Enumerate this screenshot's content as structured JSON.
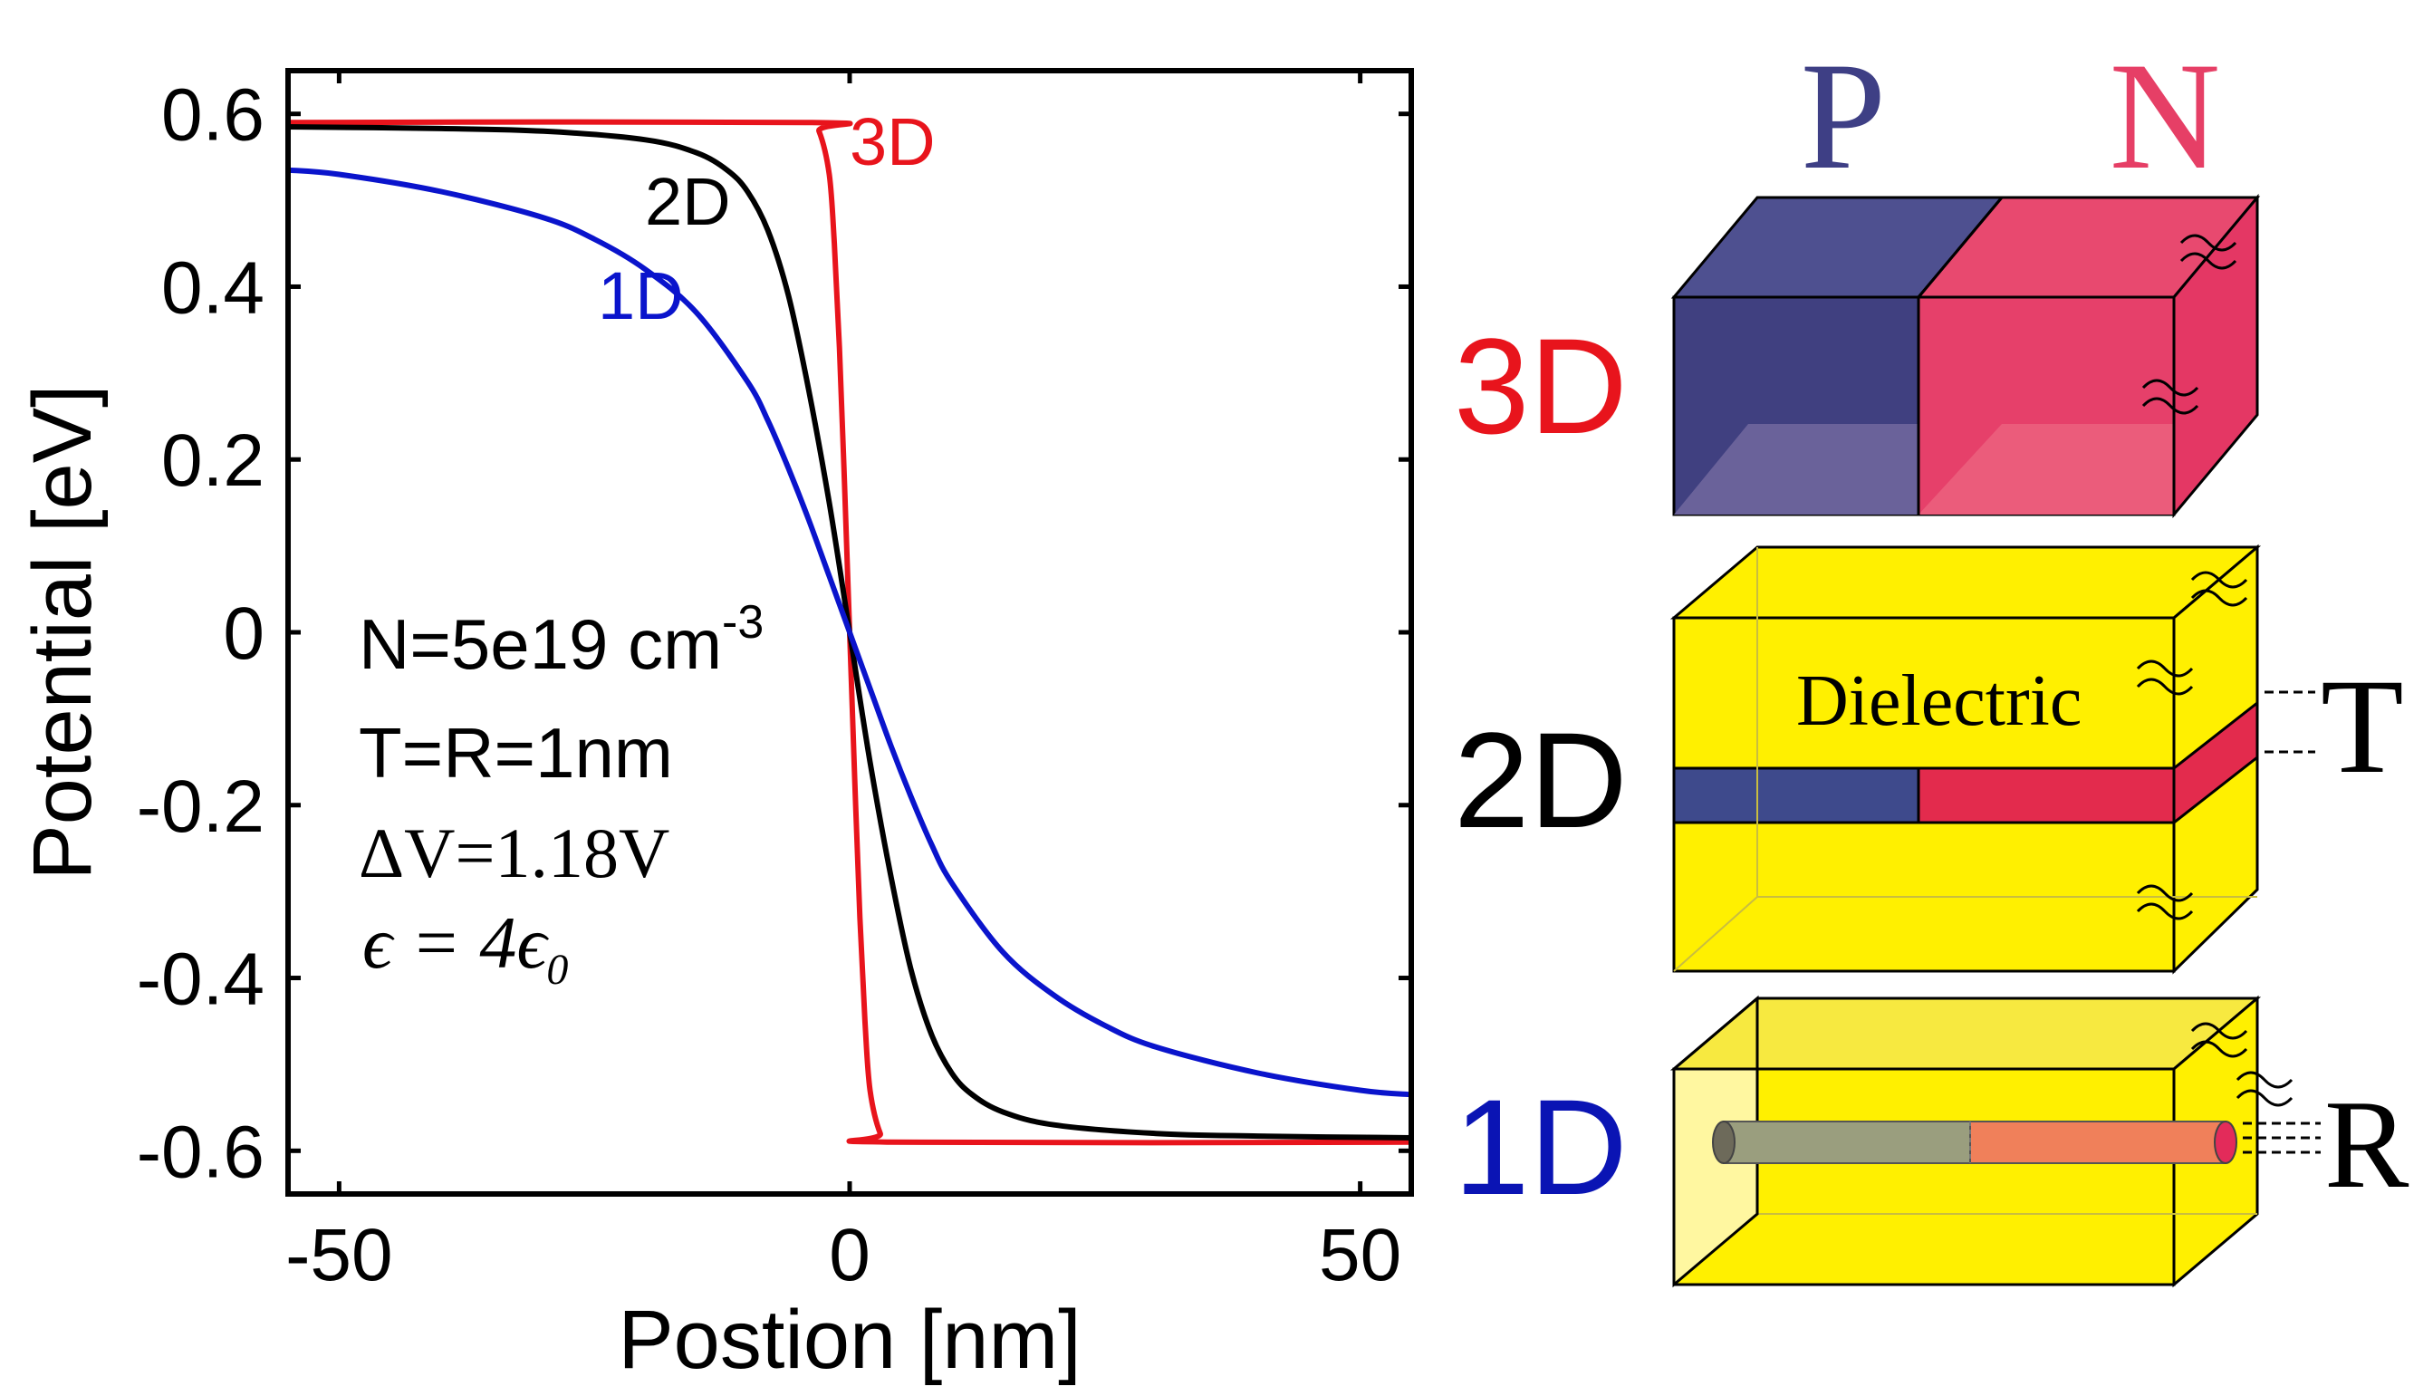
{
  "chart_data": {
    "type": "line",
    "xlabel": "Postion [nm]",
    "ylabel": "Potential [eV]",
    "xlim": [
      -55,
      55
    ],
    "ylim": [
      -0.65,
      0.65
    ],
    "x_ticks": [
      -50,
      0,
      50
    ],
    "x_tick_labels": [
      "-50",
      "0",
      "50"
    ],
    "y_ticks": [
      0.6,
      0.4,
      0.2,
      0,
      -0.2,
      -0.4,
      -0.6
    ],
    "y_tick_labels": [
      "0.6",
      "0.4",
      "0.2",
      "0",
      "-0.2",
      "-0.4",
      "-0.6"
    ],
    "series": [
      {
        "name": "3D",
        "color": "#e8141c",
        "x": [
          -55,
          -4,
          -3,
          -2,
          -1.5,
          -1,
          -0.5,
          0,
          0.5,
          1,
          1.5,
          2,
          3,
          4,
          55
        ],
        "y": [
          0.59,
          0.59,
          0.58,
          0.53,
          0.45,
          0.33,
          0.17,
          0,
          -0.17,
          -0.33,
          -0.45,
          -0.53,
          -0.58,
          -0.59,
          -0.59
        ]
      },
      {
        "name": "2D",
        "color": "#000000",
        "x": [
          -55,
          -40,
          -30,
          -20,
          -15,
          -12,
          -10,
          -8,
          -6,
          -4,
          -2,
          0,
          2,
          4,
          6,
          8,
          10,
          12,
          15,
          20,
          30,
          40,
          55
        ],
        "y": [
          0.585,
          0.583,
          0.58,
          0.57,
          0.555,
          0.535,
          0.51,
          0.465,
          0.39,
          0.28,
          0.15,
          0,
          -0.15,
          -0.28,
          -0.39,
          -0.465,
          -0.51,
          -0.535,
          -0.555,
          -0.57,
          -0.58,
          -0.583,
          -0.585
        ]
      },
      {
        "name": "1D",
        "color": "#0a14cc",
        "x": [
          -55,
          -50,
          -40,
          -30,
          -25,
          -20,
          -15,
          -10,
          -8,
          -6,
          -4,
          -2,
          0,
          2,
          4,
          6,
          8,
          10,
          15,
          20,
          25,
          30,
          40,
          50,
          55
        ],
        "y": [
          0.535,
          0.53,
          0.51,
          0.48,
          0.455,
          0.42,
          0.37,
          0.29,
          0.245,
          0.19,
          0.13,
          0.065,
          0,
          -0.065,
          -0.13,
          -0.19,
          -0.245,
          -0.29,
          -0.37,
          -0.42,
          -0.455,
          -0.48,
          -0.51,
          -0.53,
          -0.535
        ]
      }
    ],
    "curve_labels": [
      "3D",
      "2D",
      "1D"
    ],
    "annotations": {
      "doping": "N=5e19 cm",
      "doping_exp": "-3",
      "thickness": "T=R=1nm",
      "voltage": "ΔV=1.18V",
      "permittivity": "ϵ = 4ϵ",
      "permittivity_sub": "0"
    }
  },
  "schematic": {
    "p_label": "P",
    "n_label": "N",
    "row_labels": [
      "3D",
      "2D",
      "1D"
    ],
    "dielectric_label": "Dielectric",
    "t_label": "T",
    "r_label": "R",
    "colors": {
      "p_region": "#3e3f85",
      "n_region": "#e63f66",
      "dielectric": "#fff000",
      "label_3d": "#e8141c",
      "label_2d": "#000000",
      "label_1d": "#0a14b4"
    }
  }
}
